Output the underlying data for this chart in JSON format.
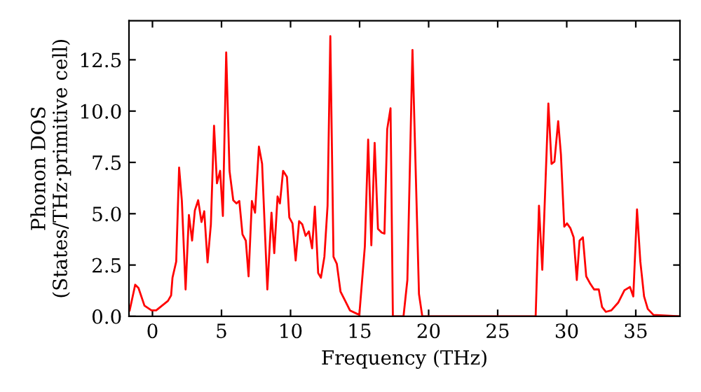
{
  "chart_data": {
    "type": "line",
    "xlabel": "Frequency (THz)",
    "ylabel": "Phonon DOS\n(States/THz·primitive cell)",
    "x": [
      -1.65,
      -1.25,
      -1.01,
      -0.58,
      -0.07,
      0.27,
      1.12,
      1.35,
      1.45,
      1.72,
      1.93,
      2.13,
      2.4,
      2.64,
      2.87,
      3.07,
      3.31,
      3.55,
      3.75,
      3.99,
      4.23,
      4.46,
      4.67,
      4.9,
      5.1,
      5.34,
      5.58,
      5.85,
      6.08,
      6.29,
      6.52,
      6.76,
      6.96,
      7.2,
      7.43,
      7.71,
      7.94,
      8.32,
      8.62,
      8.82,
      9.06,
      9.23,
      9.46,
      9.74,
      9.91,
      10.14,
      10.37,
      10.62,
      10.85,
      11.09,
      11.33,
      11.56,
      11.76,
      12.0,
      12.2,
      12.45,
      12.68,
      12.88,
      13.11,
      13.35,
      13.62,
      13.96,
      14.3,
      14.98,
      15.38,
      15.62,
      15.85,
      16.09,
      16.33,
      16.6,
      16.8,
      17.0,
      17.24,
      17.41,
      18.18,
      18.46,
      18.83,
      19.3,
      19.54,
      27.75,
      27.99,
      28.23,
      28.67,
      28.9,
      29.11,
      29.38,
      29.58,
      29.82,
      30.02,
      30.26,
      30.5,
      30.73,
      30.93,
      31.17,
      31.41,
      31.71,
      31.98,
      32.32,
      32.56,
      32.83,
      33.23,
      33.74,
      34.18,
      34.58,
      34.82,
      35.09,
      35.33,
      35.6,
      35.87,
      36.28,
      38.13
    ],
    "series": [
      {
        "color": "#ff0000",
        "values": [
          0.29,
          1.54,
          1.38,
          0.52,
          0.29,
          0.29,
          0.75,
          1.02,
          1.88,
          2.67,
          7.25,
          5.62,
          1.31,
          4.94,
          3.69,
          5.16,
          5.66,
          4.6,
          5.12,
          2.63,
          4.48,
          9.29,
          6.48,
          7.09,
          4.89,
          12.86,
          7.09,
          5.66,
          5.5,
          5.62,
          3.99,
          3.69,
          1.95,
          5.62,
          5.05,
          8.27,
          7.43,
          1.31,
          5.05,
          3.08,
          5.84,
          5.5,
          7.09,
          6.79,
          4.82,
          4.53,
          2.72,
          4.64,
          4.48,
          3.92,
          4.14,
          3.31,
          5.35,
          2.11,
          1.88,
          2.9,
          5.39,
          13.65,
          2.9,
          2.56,
          1.2,
          0.75,
          0.29,
          0.07,
          3.4,
          8.61,
          3.46,
          8.45,
          4.26,
          4.08,
          4.03,
          9.12,
          10.14,
          0.0,
          0.0,
          1.77,
          12.98,
          1.09,
          0.0,
          0.0,
          5.39,
          2.27,
          10.37,
          7.43,
          7.54,
          9.51,
          7.88,
          4.37,
          4.53,
          4.3,
          3.85,
          1.77,
          3.69,
          3.85,
          1.95,
          1.58,
          1.31,
          1.31,
          0.45,
          0.22,
          0.29,
          0.68,
          1.27,
          1.43,
          0.97,
          5.21,
          2.67,
          0.97,
          0.36,
          0.07,
          0.0
        ]
      }
    ],
    "xlim": [
      -1.7,
      38.2
    ],
    "ylim": [
      0,
      14.4
    ],
    "xticks": [
      0,
      5,
      10,
      15,
      20,
      25,
      30,
      35
    ],
    "yticks": [
      {
        "value": 0,
        "label": "0.0"
      },
      {
        "value": 2.5,
        "label": "2.5"
      },
      {
        "value": 5,
        "label": "5.0"
      },
      {
        "value": 7.5,
        "label": "7.5"
      },
      {
        "value": 10,
        "label": "10.0"
      },
      {
        "value": 12.5,
        "label": "12.5"
      }
    ],
    "grid": false,
    "marker": "none",
    "line_style": "solid"
  }
}
